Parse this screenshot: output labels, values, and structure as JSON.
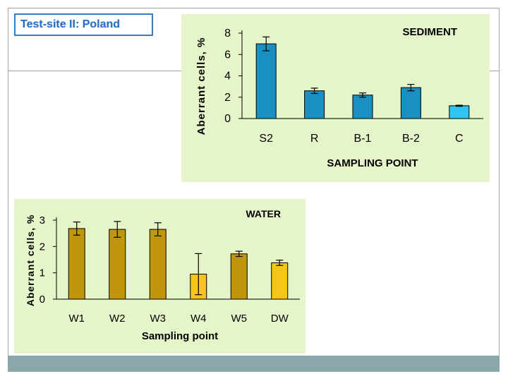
{
  "page": {
    "title": "Test-site II: Poland"
  },
  "chart_data": [
    {
      "type": "bar",
      "title": "SEDIMENT",
      "xlabel": "SAMPLING POINT",
      "ylabel": "Aberrant cells, %",
      "ylim": [
        0,
        8
      ],
      "yticks": [
        0,
        2,
        4,
        6,
        8
      ],
      "categories": [
        "S2",
        "R",
        "B-1",
        "B-2",
        "C"
      ],
      "values": [
        7.0,
        2.6,
        2.2,
        2.9,
        1.2
      ],
      "errors": [
        0.65,
        0.25,
        0.2,
        0.3,
        0.05
      ],
      "colors": [
        "#1a8fc2",
        "#1a8fc2",
        "#1a8fc2",
        "#1a8fc2",
        "#2ec6f0"
      ]
    },
    {
      "type": "bar",
      "title": "WATER",
      "xlabel": "Sampling point",
      "ylabel": "Aberrant cells, %",
      "ylim": [
        0,
        3
      ],
      "yticks": [
        0,
        1,
        2,
        3
      ],
      "categories": [
        "W1",
        "W2",
        "W3",
        "W4",
        "W5",
        "DW"
      ],
      "values": [
        2.68,
        2.65,
        2.65,
        0.95,
        1.72,
        1.38
      ],
      "errors": [
        0.25,
        0.3,
        0.25,
        0.78,
        0.1,
        0.1
      ],
      "colors": [
        "#c0960f",
        "#c0960f",
        "#c0960f",
        "#f5c518",
        "#c0960f",
        "#f5c518"
      ]
    }
  ]
}
